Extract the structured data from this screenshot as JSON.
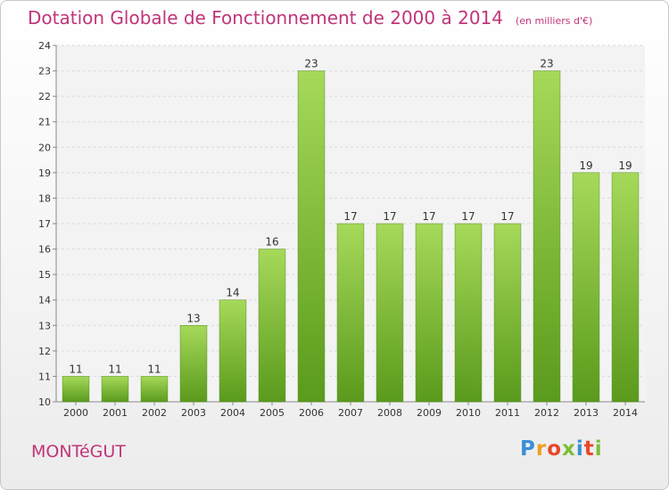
{
  "chart_data": {
    "type": "bar",
    "title": "Dotation Globale de Fonctionnement de 2000 à 2014",
    "unit_label": "(en milliers d'€)",
    "categories": [
      "2000",
      "2001",
      "2002",
      "2003",
      "2004",
      "2005",
      "2006",
      "2007",
      "2008",
      "2009",
      "2010",
      "2011",
      "2012",
      "2013",
      "2014"
    ],
    "values": [
      11,
      11,
      11,
      13,
      14,
      16,
      23,
      17,
      17,
      17,
      17,
      17,
      23,
      19,
      19
    ],
    "ylim": [
      10,
      24
    ],
    "yticks": [
      "10",
      "11",
      "12",
      "13",
      "14",
      "15",
      "16",
      "17",
      "18",
      "19",
      "20",
      "21",
      "22",
      "23",
      "24"
    ],
    "grid": true,
    "bar_color": "#7cc036",
    "bar_color_light": "#a6d95a",
    "bar_color_dark": "#5a9a1c",
    "text_color": "#c0357a"
  },
  "footer": {
    "commune": "MONTéGUT",
    "logo_letters": [
      "P",
      "r",
      "o",
      "x",
      "i",
      "t",
      "i"
    ],
    "logo_colors": [
      "#3a8fd6",
      "#f0a020",
      "#e8472a",
      "#7cc036",
      "#3a8fd6",
      "#e8472a",
      "#7cc036"
    ]
  }
}
